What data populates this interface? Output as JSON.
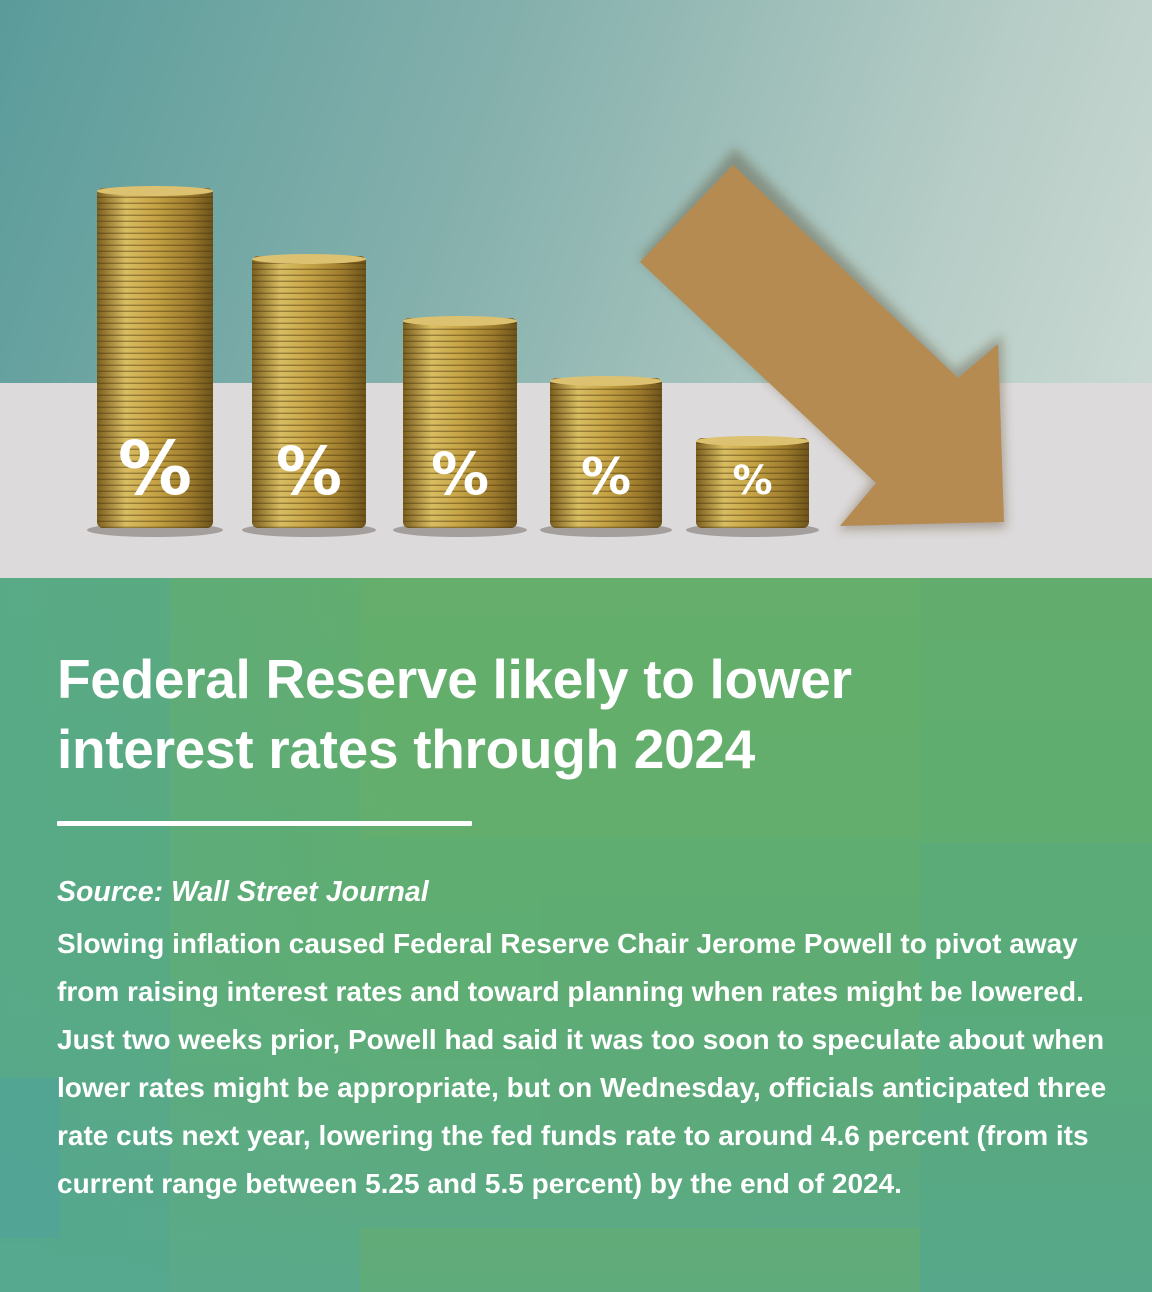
{
  "illustration": {
    "stacks": [
      {
        "symbol": "%",
        "coin_color": "#c9a94a"
      },
      {
        "symbol": "%",
        "coin_color": "#c9a94a"
      },
      {
        "symbol": "%",
        "coin_color": "#c9a94a"
      },
      {
        "symbol": "%",
        "coin_color": "#c9a94a"
      },
      {
        "symbol": "%",
        "coin_color": "#c9a94a"
      }
    ],
    "arrow_color": "#b58b52",
    "arrow_direction": "down-right",
    "table_color": "#dcdadb"
  },
  "article": {
    "headline": "Federal Reserve likely to lower interest rates through 2024",
    "source": "Source: Wall Street Journal",
    "body": "Slowing inflation caused Federal Reserve Chair Jerome Powell to pivot away from raising interest rates and toward planning when rates might be lowered. Just two weeks prior, Powell had said it was too soon to speculate about when lower rates might be appropriate, but on Wednesday, officials anticipated three rate cuts next year, lowering the fed funds rate to around 4.6 percent (from its current range between 5.25 and 5.5 percent) by the end of 2024."
  },
  "colors": {
    "panel_green": "#5ead72",
    "text": "#ffffff"
  }
}
